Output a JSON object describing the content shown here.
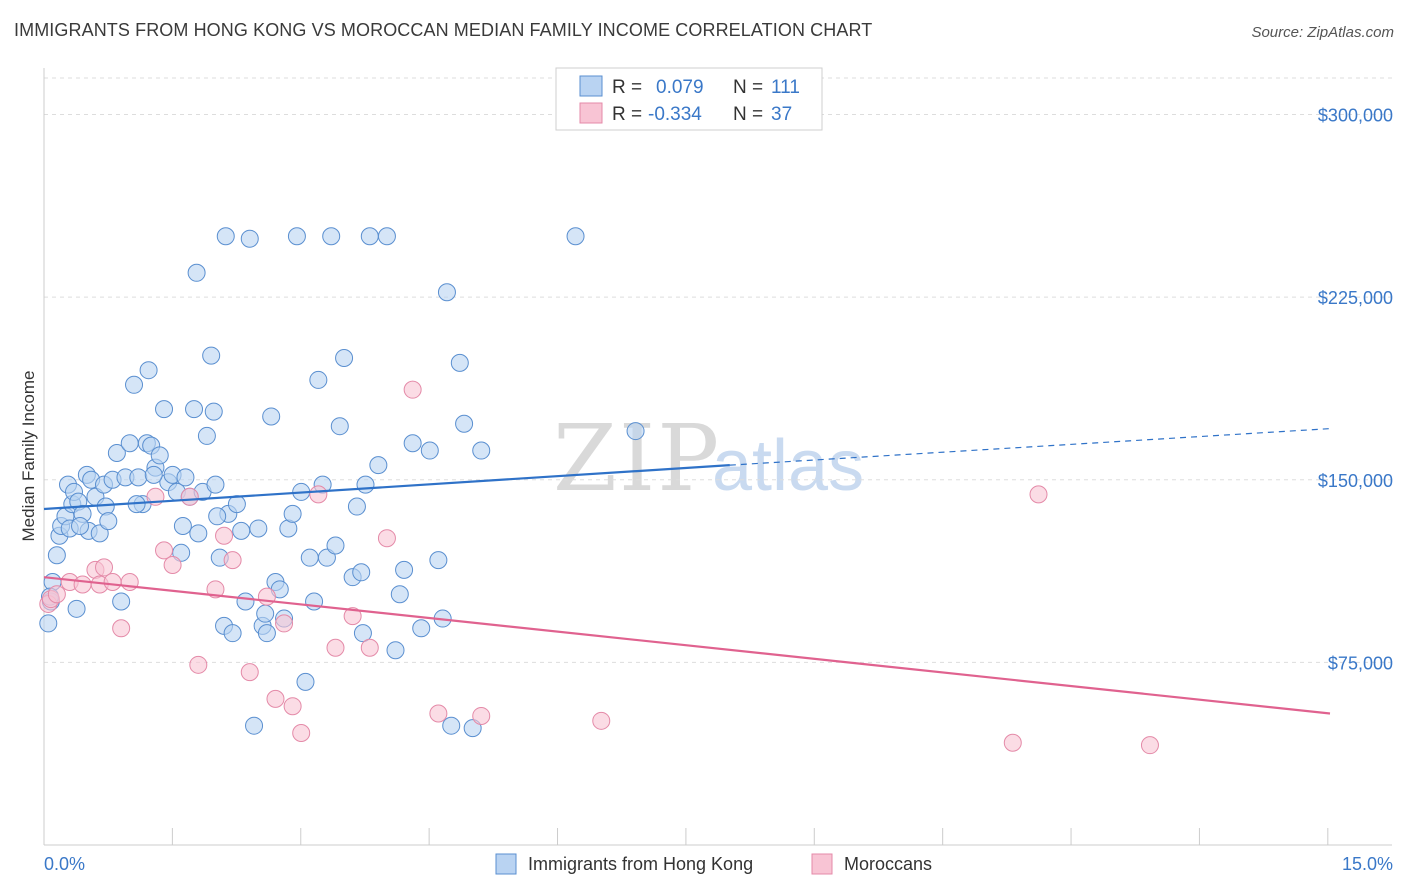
{
  "title": "IMMIGRANTS FROM HONG KONG VS MOROCCAN MEDIAN FAMILY INCOME CORRELATION CHART",
  "source": "Source: ZipAtlas.com",
  "watermark": {
    "zip": "ZIP",
    "atlas": "atlas"
  },
  "colors": {
    "blue_fill": "#b9d3f2",
    "blue_stroke": "#5a8fd0",
    "blue_line": "#2f72c8",
    "pink_fill": "#f8c4d4",
    "pink_stroke": "#e48aa8",
    "pink_line": "#e0628f",
    "grid": "#dddddd",
    "axis_text": "#3a78c8"
  },
  "legend": {
    "blue": {
      "r_label": "R =",
      "r_value": "0.079",
      "n_label": "N =",
      "n_value": "111"
    },
    "pink": {
      "r_label": "R =",
      "r_value": "-0.334",
      "n_label": "N =",
      "n_value": "37"
    }
  },
  "chart_data": {
    "type": "scatter",
    "title": "IMMIGRANTS FROM HONG KONG VS MOROCCAN MEDIAN FAMILY INCOME CORRELATION CHART",
    "xlabel": "",
    "ylabel": "Median Family Income",
    "xlim": [
      0,
      15
    ],
    "ylim": [
      0,
      315000
    ],
    "x_tick_labels": [
      "0.0%",
      "15.0%"
    ],
    "y_ticks": [
      75000,
      150000,
      225000,
      300000
    ],
    "y_tick_labels": [
      "$75,000",
      "$150,000",
      "$225,000",
      "$300,000"
    ],
    "grid": true,
    "legend_position": "top-center",
    "series": [
      {
        "name": "Immigrants from Hong Kong",
        "color": "#b9d3f2",
        "trend": {
          "x0": 0,
          "y0": 138000,
          "x1": 8.0,
          "y1": 156000,
          "dash_to_x": 15.0,
          "dash_to_y": 171000
        },
        "points": [
          [
            0.05,
            91000
          ],
          [
            0.08,
            100000
          ],
          [
            0.1,
            108000
          ],
          [
            0.15,
            119000
          ],
          [
            0.18,
            127000
          ],
          [
            0.2,
            131000
          ],
          [
            0.25,
            135000
          ],
          [
            0.28,
            148000
          ],
          [
            0.3,
            130000
          ],
          [
            0.33,
            140000
          ],
          [
            0.35,
            145000
          ],
          [
            0.38,
            97000
          ],
          [
            0.4,
            141000
          ],
          [
            0.45,
            136000
          ],
          [
            0.5,
            152000
          ],
          [
            0.52,
            129000
          ],
          [
            0.55,
            150000
          ],
          [
            0.6,
            143000
          ],
          [
            0.65,
            128000
          ],
          [
            0.7,
            148000
          ],
          [
            0.72,
            139000
          ],
          [
            0.75,
            133000
          ],
          [
            0.8,
            150000
          ],
          [
            0.85,
            161000
          ],
          [
            0.9,
            100000
          ],
          [
            0.95,
            151000
          ],
          [
            1.0,
            165000
          ],
          [
            1.05,
            189000
          ],
          [
            1.1,
            151000
          ],
          [
            1.15,
            140000
          ],
          [
            1.2,
            165000
          ],
          [
            1.22,
            195000
          ],
          [
            1.25,
            164000
          ],
          [
            1.3,
            155000
          ],
          [
            1.35,
            160000
          ],
          [
            1.4,
            179000
          ],
          [
            1.45,
            149000
          ],
          [
            1.5,
            152000
          ],
          [
            1.55,
            145000
          ],
          [
            1.6,
            120000
          ],
          [
            1.62,
            131000
          ],
          [
            1.65,
            151000
          ],
          [
            1.7,
            143000
          ],
          [
            1.75,
            179000
          ],
          [
            1.78,
            235000
          ],
          [
            1.8,
            128000
          ],
          [
            1.85,
            145000
          ],
          [
            1.9,
            168000
          ],
          [
            1.95,
            201000
          ],
          [
            1.98,
            178000
          ],
          [
            2.0,
            148000
          ],
          [
            2.05,
            118000
          ],
          [
            2.1,
            90000
          ],
          [
            2.12,
            250000
          ],
          [
            2.15,
            136000
          ],
          [
            2.2,
            87000
          ],
          [
            2.25,
            140000
          ],
          [
            2.3,
            129000
          ],
          [
            2.35,
            100000
          ],
          [
            2.4,
            249000
          ],
          [
            2.45,
            49000
          ],
          [
            2.5,
            130000
          ],
          [
            2.55,
            90000
          ],
          [
            2.6,
            87000
          ],
          [
            2.65,
            176000
          ],
          [
            2.7,
            108000
          ],
          [
            2.75,
            105000
          ],
          [
            2.8,
            93000
          ],
          [
            2.85,
            130000
          ],
          [
            2.9,
            136000
          ],
          [
            2.95,
            250000
          ],
          [
            3.0,
            145000
          ],
          [
            3.05,
            67000
          ],
          [
            3.1,
            118000
          ],
          [
            3.15,
            100000
          ],
          [
            3.2,
            191000
          ],
          [
            3.25,
            148000
          ],
          [
            3.3,
            118000
          ],
          [
            3.35,
            250000
          ],
          [
            3.4,
            123000
          ],
          [
            3.45,
            172000
          ],
          [
            3.5,
            200000
          ],
          [
            3.6,
            110000
          ],
          [
            3.65,
            139000
          ],
          [
            3.7,
            112000
          ],
          [
            3.72,
            87000
          ],
          [
            3.75,
            148000
          ],
          [
            3.8,
            250000
          ],
          [
            3.9,
            156000
          ],
          [
            4.0,
            250000
          ],
          [
            4.1,
            80000
          ],
          [
            4.15,
            103000
          ],
          [
            4.2,
            113000
          ],
          [
            4.3,
            165000
          ],
          [
            4.4,
            89000
          ],
          [
            4.5,
            162000
          ],
          [
            4.6,
            117000
          ],
          [
            4.65,
            93000
          ],
          [
            4.7,
            227000
          ],
          [
            4.75,
            49000
          ],
          [
            4.85,
            198000
          ],
          [
            4.9,
            173000
          ],
          [
            5.0,
            48000
          ],
          [
            5.1,
            162000
          ],
          [
            6.2,
            250000
          ],
          [
            6.9,
            170000
          ],
          [
            0.07,
            102000
          ],
          [
            0.42,
            131000
          ],
          [
            1.08,
            140000
          ],
          [
            1.28,
            152000
          ],
          [
            2.02,
            135000
          ],
          [
            2.58,
            95000
          ]
        ]
      },
      {
        "name": "Moroccans",
        "color": "#f8c4d4",
        "trend": {
          "x0": 0,
          "y0": 110000,
          "x1": 15.0,
          "y1": 54000
        },
        "points": [
          [
            0.05,
            99000
          ],
          [
            0.08,
            101000
          ],
          [
            0.15,
            103000
          ],
          [
            0.3,
            108000
          ],
          [
            0.45,
            107000
          ],
          [
            0.6,
            113000
          ],
          [
            0.65,
            107000
          ],
          [
            0.7,
            114000
          ],
          [
            0.8,
            108000
          ],
          [
            0.9,
            89000
          ],
          [
            1.0,
            108000
          ],
          [
            1.3,
            143000
          ],
          [
            1.4,
            121000
          ],
          [
            1.5,
            115000
          ],
          [
            1.7,
            143000
          ],
          [
            1.8,
            74000
          ],
          [
            2.0,
            105000
          ],
          [
            2.1,
            127000
          ],
          [
            2.2,
            117000
          ],
          [
            2.4,
            71000
          ],
          [
            2.6,
            102000
          ],
          [
            2.7,
            60000
          ],
          [
            2.8,
            91000
          ],
          [
            2.9,
            57000
          ],
          [
            3.0,
            46000
          ],
          [
            3.2,
            144000
          ],
          [
            3.4,
            81000
          ],
          [
            3.6,
            94000
          ],
          [
            3.8,
            81000
          ],
          [
            4.0,
            126000
          ],
          [
            4.3,
            187000
          ],
          [
            4.6,
            54000
          ],
          [
            5.1,
            53000
          ],
          [
            6.5,
            51000
          ],
          [
            11.3,
            42000
          ],
          [
            11.6,
            144000
          ],
          [
            12.9,
            41000
          ]
        ]
      }
    ]
  },
  "bottom_legend": {
    "blue_label": "Immigrants from Hong Kong",
    "pink_label": "Moroccans"
  }
}
